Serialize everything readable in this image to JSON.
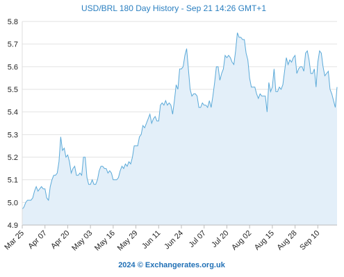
{
  "chart_data": {
    "type": "area-line",
    "title": "USD/BRL 180 Day History - Sep 21 14:26 GMT+1",
    "footer": "2024 © Exchangerates.org.uk",
    "line_color": "#5aa9d8",
    "fill_color": "#e3eff9",
    "grid": true,
    "ylim": [
      4.9,
      5.8
    ],
    "yticks": [
      4.9,
      {
        "value": 5,
        "label": "5.0"
      },
      5.1,
      5.2,
      5.3,
      5.4,
      5.5,
      5.6,
      5.7,
      5.8
    ],
    "categories": [
      "Mar 25",
      null,
      null,
      null,
      null,
      null,
      null,
      null,
      null,
      null,
      null,
      null,
      null,
      "Apr 07",
      null,
      null,
      null,
      null,
      null,
      null,
      null,
      null,
      null,
      null,
      null,
      null,
      "Apr 20",
      null,
      null,
      null,
      null,
      null,
      null,
      null,
      null,
      null,
      null,
      null,
      null,
      "May 03",
      null,
      null,
      null,
      null,
      null,
      null,
      null,
      null,
      null,
      null,
      null,
      null,
      "May 16",
      null,
      null,
      null,
      null,
      null,
      null,
      null,
      null,
      null,
      null,
      null,
      null,
      "May 29",
      null,
      null,
      null,
      null,
      null,
      null,
      null,
      null,
      null,
      null,
      null,
      null,
      "Jun 11",
      null,
      null,
      null,
      null,
      null,
      null,
      null,
      null,
      null,
      null,
      null,
      null,
      "Jun 24",
      null,
      null,
      null,
      null,
      null,
      null,
      null,
      null,
      null,
      null,
      null,
      null,
      "Jul 07",
      null,
      null,
      null,
      null,
      null,
      null,
      null,
      null,
      null,
      null,
      null,
      null,
      "Jul 20",
      null,
      null,
      null,
      null,
      null,
      null,
      null,
      null,
      null,
      null,
      null,
      null,
      "Aug 02",
      null,
      null,
      null,
      null,
      null,
      null,
      null,
      null,
      null,
      null,
      null,
      null,
      "Aug 15",
      null,
      null,
      null,
      null,
      null,
      null,
      null,
      null,
      null,
      null,
      null,
      null,
      "Aug 28",
      null,
      null,
      null,
      null,
      null,
      null,
      null,
      null,
      null,
      null,
      null,
      null,
      "Sep 10",
      null,
      null,
      null,
      null,
      null,
      null,
      null,
      null,
      null,
      null,
      null
    ],
    "values": [
      4.97,
      4.98,
      5.0,
      5.01,
      5.01,
      5.01,
      5.02,
      5.05,
      5.07,
      5.05,
      5.06,
      5.07,
      5.06,
      5.06,
      5.02,
      5.01,
      5.07,
      5.1,
      5.12,
      5.12,
      5.13,
      5.18,
      5.29,
      5.23,
      5.24,
      5.2,
      5.21,
      5.18,
      5.13,
      5.15,
      5.16,
      5.12,
      5.12,
      5.13,
      5.12,
      5.2,
      5.2,
      5.11,
      5.08,
      5.08,
      5.1,
      5.08,
      5.08,
      5.1,
      5.14,
      5.16,
      5.16,
      5.15,
      5.15,
      5.13,
      5.14,
      5.13,
      5.1,
      5.1,
      5.1,
      5.11,
      5.14,
      5.16,
      5.15,
      5.17,
      5.16,
      5.18,
      5.17,
      5.2,
      5.25,
      5.25,
      5.25,
      5.29,
      5.3,
      5.34,
      5.33,
      5.35,
      5.37,
      5.39,
      5.35,
      5.37,
      5.38,
      5.36,
      5.36,
      5.43,
      5.44,
      5.43,
      5.45,
      5.43,
      5.44,
      5.43,
      5.39,
      5.45,
      5.52,
      5.5,
      5.59,
      5.59,
      5.6,
      5.65,
      5.68,
      5.59,
      5.5,
      5.47,
      5.48,
      5.48,
      5.47,
      5.42,
      5.42,
      5.44,
      5.43,
      5.43,
      5.42,
      5.45,
      5.42,
      5.47,
      5.53,
      5.6,
      5.6,
      5.54,
      5.57,
      5.59,
      5.65,
      5.64,
      5.65,
      5.64,
      5.62,
      5.61,
      5.67,
      5.75,
      5.73,
      5.73,
      5.72,
      5.72,
      5.66,
      5.63,
      5.55,
      5.51,
      5.51,
      5.51,
      5.48,
      5.46,
      5.48,
      5.47,
      5.47,
      5.47,
      5.4,
      5.53,
      5.49,
      5.51,
      5.59,
      5.49,
      5.49,
      5.51,
      5.5,
      5.52,
      5.58,
      5.64,
      5.61,
      5.63,
      5.62,
      5.64,
      5.65,
      5.57,
      5.59,
      5.6,
      5.6,
      5.58,
      5.66,
      5.67,
      5.63,
      5.57,
      5.57,
      5.59,
      5.51,
      5.62,
      5.67,
      5.66,
      5.6,
      5.56,
      5.57,
      5.58,
      5.5,
      5.48,
      5.45,
      5.42,
      5.51
    ]
  }
}
